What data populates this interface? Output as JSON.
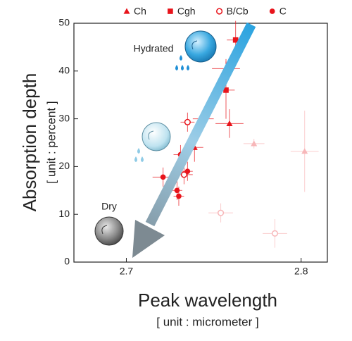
{
  "chart_data": {
    "type": "scatter",
    "x_label": "Peak wavelength",
    "x_unit": "[ unit : micrometer ]",
    "y_label": "Absorption depth",
    "y_unit": "[ unit : percent ]",
    "annotations": [
      "Hydrated",
      "Dry"
    ],
    "xlim": [
      2.67,
      2.815
    ],
    "xticks": [
      2.7,
      2.8
    ],
    "ylim": [
      0,
      50
    ],
    "yticks": [
      0,
      10,
      20,
      30,
      40,
      50
    ],
    "grid": false,
    "legend": "top",
    "series": [
      {
        "name": "Ch",
        "color": "#e8141b",
        "marker": "triangle",
        "x": [
          2.757,
          2.759,
          2.744,
          2.739,
          2.773,
          2.802
        ],
        "values": [
          40.5,
          29,
          30,
          24,
          24.8,
          23.2
        ],
        "xerr": [
          0.008,
          0.008,
          0.006,
          0.005,
          0.006,
          0.008
        ],
        "yerr": [
          2,
          3,
          2,
          3,
          1,
          8.5
        ],
        "alpha": [
          1,
          1,
          1,
          1,
          0.3,
          0.3
        ]
      },
      {
        "name": "Cgh",
        "color": "#e8141b",
        "marker": "square",
        "x": [
          2.7625,
          2.757
        ],
        "values": [
          46.5,
          36
        ],
        "xerr": [
          0.005,
          0.005
        ],
        "yerr": [
          4,
          6
        ],
        "alpha": [
          1,
          1
        ]
      },
      {
        "name": "B/Cb",
        "color": "#e8141b",
        "marker": "open-circle",
        "x": [
          2.735,
          2.733,
          2.754,
          2.785
        ],
        "values": [
          29.3,
          18.3,
          10.3,
          6
        ],
        "xerr": [
          0.004,
          0.005,
          0.007,
          0.007
        ],
        "yerr": [
          2,
          2,
          2,
          3
        ],
        "alpha": [
          1,
          1,
          0.3,
          0.3
        ]
      },
      {
        "name": "C",
        "color": "#e8141b",
        "marker": "circle",
        "x": [
          2.731,
          2.721,
          2.735,
          2.729,
          2.73
        ],
        "values": [
          22.5,
          17.8,
          19,
          15,
          13.8
        ],
        "xerr": [
          0.004,
          0.006,
          0.003,
          0.003,
          0.003
        ],
        "yerr": [
          2,
          2,
          2,
          2,
          2
        ],
        "alpha": [
          1,
          1,
          1,
          1,
          1
        ]
      }
    ]
  }
}
